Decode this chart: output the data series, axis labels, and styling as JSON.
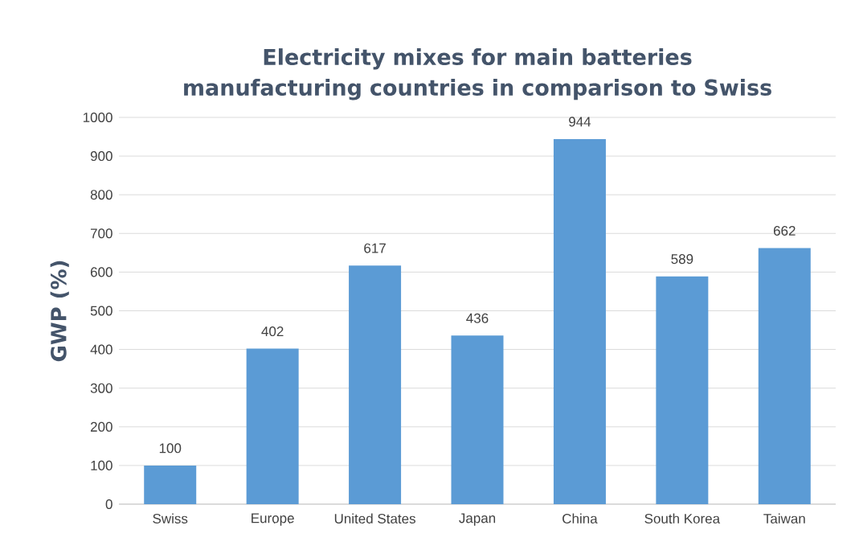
{
  "chart_data": {
    "type": "bar",
    "title": "Electricity mixes for main batteries manufacturing countries in comparison to Swiss",
    "ylabel": "GWP (%)",
    "categories": [
      "Swiss",
      "Europe",
      "United States",
      "Japan",
      "China",
      "South Korea",
      "Taiwan"
    ],
    "values": [
      100,
      402,
      617,
      436,
      944,
      589,
      662
    ],
    "color": "#5b9bd5",
    "ylim": [
      0,
      1000
    ],
    "yticks": [
      0,
      100,
      200,
      300,
      400,
      500,
      600,
      700,
      800,
      900,
      1000
    ],
    "grid": "y",
    "data_labels": true
  }
}
